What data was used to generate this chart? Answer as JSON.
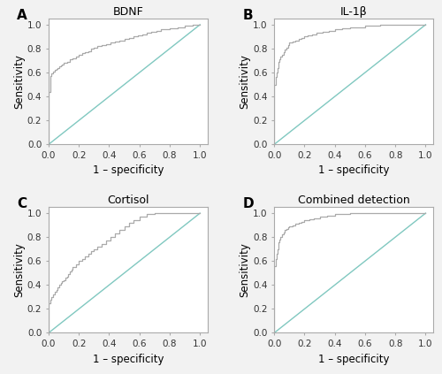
{
  "panels": [
    {
      "label": "A",
      "title": "BDNF",
      "roc_color": "#aaaaaa",
      "diag_color": "#80c8c0",
      "roc_points": [
        [
          0.0,
          0.0
        ],
        [
          0.0,
          0.44
        ],
        [
          0.01,
          0.44
        ],
        [
          0.01,
          0.57
        ],
        [
          0.02,
          0.57
        ],
        [
          0.02,
          0.59
        ],
        [
          0.03,
          0.59
        ],
        [
          0.03,
          0.61
        ],
        [
          0.04,
          0.61
        ],
        [
          0.04,
          0.62
        ],
        [
          0.05,
          0.62
        ],
        [
          0.05,
          0.63
        ],
        [
          0.06,
          0.63
        ],
        [
          0.06,
          0.64
        ],
        [
          0.07,
          0.64
        ],
        [
          0.07,
          0.65
        ],
        [
          0.08,
          0.65
        ],
        [
          0.08,
          0.66
        ],
        [
          0.09,
          0.66
        ],
        [
          0.09,
          0.67
        ],
        [
          0.1,
          0.67
        ],
        [
          0.1,
          0.68
        ],
        [
          0.12,
          0.68
        ],
        [
          0.12,
          0.69
        ],
        [
          0.14,
          0.69
        ],
        [
          0.14,
          0.71
        ],
        [
          0.16,
          0.71
        ],
        [
          0.16,
          0.72
        ],
        [
          0.18,
          0.72
        ],
        [
          0.18,
          0.73
        ],
        [
          0.2,
          0.73
        ],
        [
          0.2,
          0.75
        ],
        [
          0.22,
          0.75
        ],
        [
          0.22,
          0.76
        ],
        [
          0.24,
          0.76
        ],
        [
          0.24,
          0.77
        ],
        [
          0.26,
          0.77
        ],
        [
          0.26,
          0.78
        ],
        [
          0.28,
          0.78
        ],
        [
          0.28,
          0.8
        ],
        [
          0.3,
          0.8
        ],
        [
          0.3,
          0.81
        ],
        [
          0.32,
          0.81
        ],
        [
          0.32,
          0.82
        ],
        [
          0.35,
          0.82
        ],
        [
          0.35,
          0.83
        ],
        [
          0.38,
          0.83
        ],
        [
          0.38,
          0.84
        ],
        [
          0.41,
          0.84
        ],
        [
          0.41,
          0.85
        ],
        [
          0.44,
          0.85
        ],
        [
          0.44,
          0.86
        ],
        [
          0.47,
          0.86
        ],
        [
          0.47,
          0.87
        ],
        [
          0.5,
          0.87
        ],
        [
          0.5,
          0.88
        ],
        [
          0.53,
          0.88
        ],
        [
          0.53,
          0.89
        ],
        [
          0.56,
          0.89
        ],
        [
          0.56,
          0.9
        ],
        [
          0.59,
          0.9
        ],
        [
          0.59,
          0.91
        ],
        [
          0.62,
          0.91
        ],
        [
          0.62,
          0.92
        ],
        [
          0.65,
          0.92
        ],
        [
          0.65,
          0.93
        ],
        [
          0.68,
          0.93
        ],
        [
          0.68,
          0.94
        ],
        [
          0.71,
          0.94
        ],
        [
          0.71,
          0.95
        ],
        [
          0.74,
          0.95
        ],
        [
          0.74,
          0.96
        ],
        [
          0.77,
          0.96
        ],
        [
          0.8,
          0.96
        ],
        [
          0.8,
          0.97
        ],
        [
          0.85,
          0.97
        ],
        [
          0.85,
          0.98
        ],
        [
          0.9,
          0.98
        ],
        [
          0.9,
          0.99
        ],
        [
          0.95,
          0.99
        ],
        [
          0.95,
          1.0
        ],
        [
          1.0,
          1.0
        ]
      ]
    },
    {
      "label": "B",
      "title": "IL-1β",
      "roc_color": "#aaaaaa",
      "diag_color": "#80c8c0",
      "roc_points": [
        [
          0.0,
          0.0
        ],
        [
          0.0,
          0.5
        ],
        [
          0.01,
          0.5
        ],
        [
          0.01,
          0.56
        ],
        [
          0.015,
          0.56
        ],
        [
          0.015,
          0.6
        ],
        [
          0.02,
          0.6
        ],
        [
          0.02,
          0.64
        ],
        [
          0.025,
          0.64
        ],
        [
          0.025,
          0.67
        ],
        [
          0.03,
          0.67
        ],
        [
          0.03,
          0.69
        ],
        [
          0.035,
          0.69
        ],
        [
          0.035,
          0.71
        ],
        [
          0.04,
          0.71
        ],
        [
          0.04,
          0.73
        ],
        [
          0.05,
          0.73
        ],
        [
          0.05,
          0.75
        ],
        [
          0.06,
          0.75
        ],
        [
          0.06,
          0.77
        ],
        [
          0.07,
          0.77
        ],
        [
          0.07,
          0.79
        ],
        [
          0.08,
          0.79
        ],
        [
          0.08,
          0.81
        ],
        [
          0.09,
          0.81
        ],
        [
          0.09,
          0.83
        ],
        [
          0.1,
          0.83
        ],
        [
          0.1,
          0.85
        ],
        [
          0.12,
          0.85
        ],
        [
          0.12,
          0.86
        ],
        [
          0.14,
          0.86
        ],
        [
          0.14,
          0.87
        ],
        [
          0.16,
          0.87
        ],
        [
          0.16,
          0.88
        ],
        [
          0.18,
          0.88
        ],
        [
          0.18,
          0.89
        ],
        [
          0.2,
          0.89
        ],
        [
          0.2,
          0.9
        ],
        [
          0.22,
          0.9
        ],
        [
          0.22,
          0.91
        ],
        [
          0.25,
          0.91
        ],
        [
          0.25,
          0.92
        ],
        [
          0.28,
          0.92
        ],
        [
          0.28,
          0.93
        ],
        [
          0.32,
          0.93
        ],
        [
          0.32,
          0.94
        ],
        [
          0.36,
          0.94
        ],
        [
          0.36,
          0.95
        ],
        [
          0.4,
          0.95
        ],
        [
          0.4,
          0.96
        ],
        [
          0.45,
          0.96
        ],
        [
          0.45,
          0.97
        ],
        [
          0.5,
          0.97
        ],
        [
          0.5,
          0.98
        ],
        [
          0.6,
          0.98
        ],
        [
          0.6,
          0.99
        ],
        [
          0.7,
          0.99
        ],
        [
          0.7,
          1.0
        ],
        [
          1.0,
          1.0
        ]
      ]
    },
    {
      "label": "C",
      "title": "Cortisol",
      "roc_color": "#aaaaaa",
      "diag_color": "#80c8c0",
      "roc_points": [
        [
          0.0,
          0.0
        ],
        [
          0.0,
          0.25
        ],
        [
          0.01,
          0.25
        ],
        [
          0.01,
          0.28
        ],
        [
          0.02,
          0.28
        ],
        [
          0.02,
          0.3
        ],
        [
          0.03,
          0.3
        ],
        [
          0.03,
          0.32
        ],
        [
          0.04,
          0.32
        ],
        [
          0.04,
          0.34
        ],
        [
          0.05,
          0.34
        ],
        [
          0.05,
          0.36
        ],
        [
          0.06,
          0.36
        ],
        [
          0.06,
          0.38
        ],
        [
          0.07,
          0.38
        ],
        [
          0.07,
          0.4
        ],
        [
          0.08,
          0.4
        ],
        [
          0.08,
          0.42
        ],
        [
          0.09,
          0.42
        ],
        [
          0.09,
          0.43
        ],
        [
          0.1,
          0.43
        ],
        [
          0.1,
          0.44
        ],
        [
          0.11,
          0.44
        ],
        [
          0.11,
          0.46
        ],
        [
          0.12,
          0.46
        ],
        [
          0.12,
          0.47
        ],
        [
          0.13,
          0.47
        ],
        [
          0.13,
          0.49
        ],
        [
          0.14,
          0.49
        ],
        [
          0.14,
          0.51
        ],
        [
          0.15,
          0.51
        ],
        [
          0.15,
          0.53
        ],
        [
          0.16,
          0.53
        ],
        [
          0.16,
          0.55
        ],
        [
          0.18,
          0.55
        ],
        [
          0.18,
          0.57
        ],
        [
          0.2,
          0.57
        ],
        [
          0.2,
          0.6
        ],
        [
          0.22,
          0.6
        ],
        [
          0.22,
          0.62
        ],
        [
          0.24,
          0.62
        ],
        [
          0.24,
          0.64
        ],
        [
          0.26,
          0.64
        ],
        [
          0.26,
          0.66
        ],
        [
          0.28,
          0.66
        ],
        [
          0.28,
          0.68
        ],
        [
          0.3,
          0.68
        ],
        [
          0.3,
          0.7
        ],
        [
          0.32,
          0.7
        ],
        [
          0.32,
          0.72
        ],
        [
          0.35,
          0.72
        ],
        [
          0.35,
          0.74
        ],
        [
          0.38,
          0.74
        ],
        [
          0.38,
          0.77
        ],
        [
          0.41,
          0.77
        ],
        [
          0.41,
          0.8
        ],
        [
          0.44,
          0.8
        ],
        [
          0.44,
          0.83
        ],
        [
          0.47,
          0.83
        ],
        [
          0.47,
          0.86
        ],
        [
          0.5,
          0.86
        ],
        [
          0.5,
          0.89
        ],
        [
          0.53,
          0.89
        ],
        [
          0.53,
          0.92
        ],
        [
          0.56,
          0.92
        ],
        [
          0.56,
          0.94
        ],
        [
          0.6,
          0.94
        ],
        [
          0.6,
          0.97
        ],
        [
          0.65,
          0.97
        ],
        [
          0.65,
          0.99
        ],
        [
          0.7,
          0.99
        ],
        [
          0.7,
          1.0
        ],
        [
          1.0,
          1.0
        ]
      ]
    },
    {
      "label": "D",
      "title": "Combined detection",
      "roc_color": "#aaaaaa",
      "diag_color": "#80c8c0",
      "roc_points": [
        [
          0.0,
          0.0
        ],
        [
          0.0,
          0.56
        ],
        [
          0.01,
          0.56
        ],
        [
          0.01,
          0.62
        ],
        [
          0.015,
          0.62
        ],
        [
          0.015,
          0.66
        ],
        [
          0.02,
          0.66
        ],
        [
          0.02,
          0.7
        ],
        [
          0.025,
          0.7
        ],
        [
          0.025,
          0.73
        ],
        [
          0.03,
          0.73
        ],
        [
          0.03,
          0.76
        ],
        [
          0.035,
          0.76
        ],
        [
          0.035,
          0.78
        ],
        [
          0.04,
          0.78
        ],
        [
          0.04,
          0.8
        ],
        [
          0.05,
          0.8
        ],
        [
          0.05,
          0.82
        ],
        [
          0.06,
          0.82
        ],
        [
          0.06,
          0.84
        ],
        [
          0.07,
          0.84
        ],
        [
          0.07,
          0.86
        ],
        [
          0.08,
          0.86
        ],
        [
          0.08,
          0.87
        ],
        [
          0.09,
          0.87
        ],
        [
          0.09,
          0.88
        ],
        [
          0.1,
          0.88
        ],
        [
          0.1,
          0.89
        ],
        [
          0.12,
          0.89
        ],
        [
          0.12,
          0.9
        ],
        [
          0.14,
          0.9
        ],
        [
          0.14,
          0.91
        ],
        [
          0.16,
          0.91
        ],
        [
          0.16,
          0.92
        ],
        [
          0.18,
          0.92
        ],
        [
          0.18,
          0.93
        ],
        [
          0.2,
          0.93
        ],
        [
          0.2,
          0.94
        ],
        [
          0.23,
          0.94
        ],
        [
          0.23,
          0.95
        ],
        [
          0.26,
          0.95
        ],
        [
          0.26,
          0.96
        ],
        [
          0.3,
          0.96
        ],
        [
          0.3,
          0.97
        ],
        [
          0.35,
          0.97
        ],
        [
          0.35,
          0.98
        ],
        [
          0.4,
          0.98
        ],
        [
          0.4,
          0.99
        ],
        [
          0.5,
          0.99
        ],
        [
          0.5,
          1.0
        ],
        [
          1.0,
          1.0
        ]
      ]
    }
  ],
  "xlabel": "1 – specificity",
  "ylabel": "Sensitivity",
  "xticks": [
    0.0,
    0.2,
    0.4,
    0.6,
    0.8,
    1.0
  ],
  "yticks": [
    0.0,
    0.2,
    0.4,
    0.6,
    0.8,
    1.0
  ],
  "xlim": [
    0.0,
    1.05
  ],
  "ylim": [
    0.0,
    1.05
  ],
  "bg_color": "#f2f2f2",
  "plot_bg": "#ffffff",
  "label_fontsize": 8.5,
  "title_fontsize": 9,
  "tick_fontsize": 7.5,
  "panel_label_fontsize": 11,
  "linewidth_roc": 0.9,
  "linewidth_diag": 1.0,
  "spine_color": "#aaaaaa"
}
